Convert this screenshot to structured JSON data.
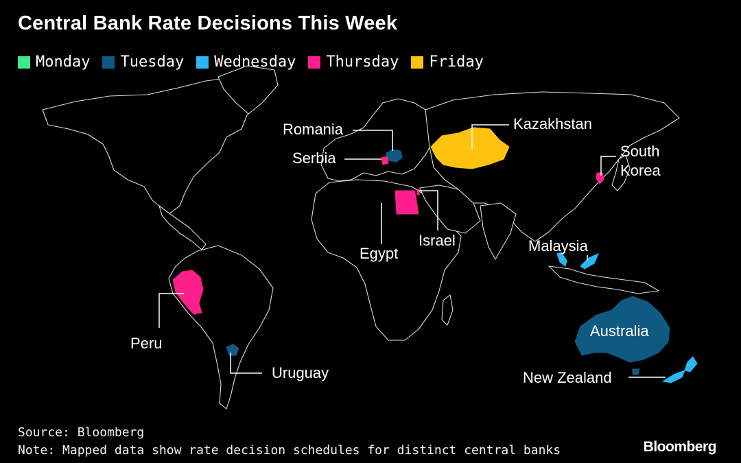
{
  "title": "Central Bank Rate Decisions This Week",
  "legend": [
    {
      "label": "Monday",
      "color": "#3de88e"
    },
    {
      "label": "Tuesday",
      "color": "#0f5a82"
    },
    {
      "label": "Wednesday",
      "color": "#2bb6f4"
    },
    {
      "label": "Thursday",
      "color": "#ff1f8c"
    },
    {
      "label": "Friday",
      "color": "#ffc20e"
    }
  ],
  "countries": [
    {
      "name": "Romania",
      "day": "Tuesday"
    },
    {
      "name": "Serbia",
      "day": "Thursday"
    },
    {
      "name": "Kazakhstan",
      "day": "Friday"
    },
    {
      "name": "South Korea",
      "day": "Thursday"
    },
    {
      "name": "Egypt",
      "day": "Thursday"
    },
    {
      "name": "Israel",
      "day": "Thursday"
    },
    {
      "name": "Malaysia",
      "day": "Wednesday"
    },
    {
      "name": "Australia",
      "day": "Tuesday"
    },
    {
      "name": "New Zealand",
      "day": "Wednesday"
    },
    {
      "name": "Peru",
      "day": "Thursday"
    },
    {
      "name": "Uruguay",
      "day": "Tuesday"
    }
  ],
  "labels": {
    "romania": "Romania",
    "serbia": "Serbia",
    "kazakhstan": "Kazakhstan",
    "south_korea_line1": "South",
    "south_korea_line2": "Korea",
    "egypt": "Egypt",
    "israel": "Israel",
    "malaysia": "Malaysia",
    "australia": "Australia",
    "new_zealand": "New Zealand",
    "peru": "Peru",
    "uruguay": "Uruguay"
  },
  "footer": {
    "source": "Source: Bloomberg",
    "note": "Note: Mapped data show rate decision schedules for distinct central banks"
  },
  "brand": "Bloomberg"
}
